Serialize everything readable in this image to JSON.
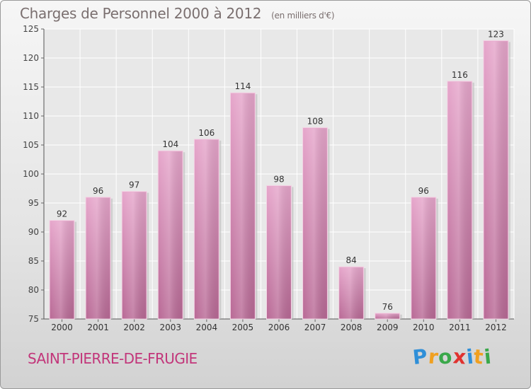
{
  "header": {
    "title": "Charges de Personnel 2000 à 2012",
    "subtitle": "(en milliers d'€)"
  },
  "footer": {
    "commune": "SAINT-PIERRE-DE-FRUGIE",
    "logo_letters": [
      "P",
      "r",
      "o",
      "x",
      "i",
      "t",
      "i"
    ],
    "logo_colors": [
      "#2f8fd8",
      "#f0a020",
      "#3aa84a",
      "#e0322f",
      "#2f8fd8",
      "#f0a020",
      "#3aa84a"
    ]
  },
  "chart_data": {
    "type": "bar",
    "title": "Charges de Personnel 2000 à 2012",
    "subtitle": "(en milliers d'€)",
    "categories": [
      "2000",
      "2001",
      "2002",
      "2003",
      "2004",
      "2005",
      "2006",
      "2007",
      "2008",
      "2009",
      "2010",
      "2011",
      "2012"
    ],
    "values": [
      92,
      96,
      97,
      104,
      106,
      114,
      98,
      108,
      84,
      76,
      96,
      116,
      123
    ],
    "ylim": [
      75,
      125
    ],
    "yticks": [
      75,
      80,
      85,
      90,
      95,
      100,
      105,
      110,
      115,
      120,
      125
    ],
    "grid": true,
    "bar_color": "#d889b4"
  }
}
